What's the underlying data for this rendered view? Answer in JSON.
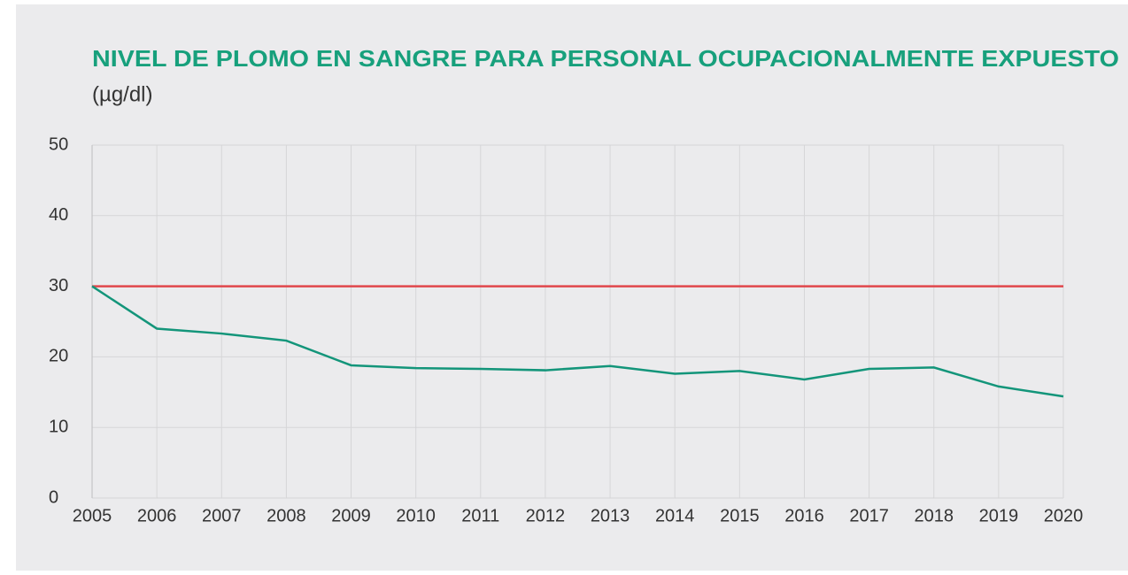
{
  "chart_data": {
    "type": "line",
    "title": "NIVEL DE PLOMO EN SANGRE PARA PERSONAL OCUPACIONALMENTE EXPUESTO",
    "subtitle": "(µg/dl)",
    "x": [
      2005,
      2006,
      2007,
      2008,
      2009,
      2010,
      2011,
      2012,
      2013,
      2014,
      2015,
      2016,
      2017,
      2018,
      2019,
      2020
    ],
    "series": [
      {
        "color": "#13957a",
        "values": [
          30,
          24,
          23.3,
          22.3,
          18.8,
          18.4,
          18.3,
          18.1,
          18.7,
          17.6,
          18.0,
          16.8,
          18.3,
          18.5,
          15.8,
          14.4
        ]
      }
    ],
    "reference_line": {
      "value": 30,
      "color": "#e0474c"
    },
    "xlim": [
      2005,
      2020
    ],
    "xticks": [
      2005,
      2006,
      2007,
      2008,
      2009,
      2010,
      2011,
      2012,
      2013,
      2014,
      2015,
      2016,
      2017,
      2018,
      2019,
      2020
    ],
    "ylim": [
      0,
      50
    ],
    "yticks": [
      0,
      10,
      20,
      30,
      40,
      50
    ],
    "grid": true
  }
}
